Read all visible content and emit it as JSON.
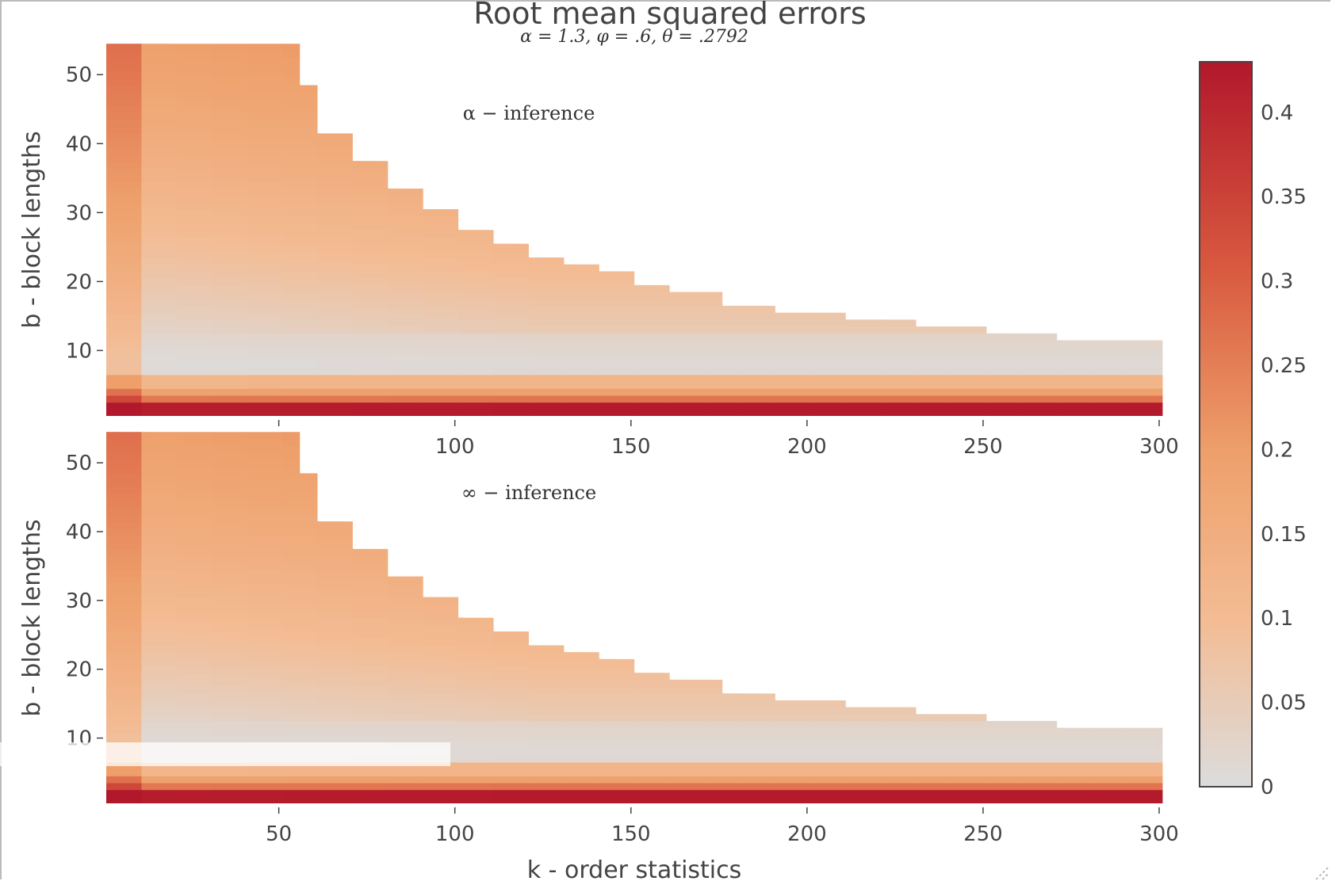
{
  "chart_data": {
    "type": "heatmap",
    "title": "Root mean squared errors",
    "subtitle": "α = 1.3, φ = .6, θ = .2792",
    "xlabel": "k - order statistics",
    "xlim": [
      1,
      300
    ],
    "xticks": [
      50,
      100,
      150,
      200,
      250,
      300
    ],
    "colorscale": {
      "range": [
        0,
        0.43
      ],
      "ticks": [
        "0",
        "0.05",
        "0.1",
        "0.15",
        "0.2",
        "0.25",
        "0.3",
        "0.35",
        "0.4"
      ],
      "tick_values": [
        0,
        0.05,
        0.1,
        0.15,
        0.2,
        0.25,
        0.3,
        0.35,
        0.4
      ],
      "colors": [
        "#dcdcdc",
        "#f3bc94",
        "#eea06b",
        "#d8583f",
        "#b2182b"
      ]
    },
    "boundary": {
      "description_k_max_per_b": [
        [
          55,
          54
        ],
        [
          60,
          48
        ],
        [
          70,
          41
        ],
        [
          80,
          37
        ],
        [
          90,
          33
        ],
        [
          100,
          30
        ],
        [
          110,
          27
        ],
        [
          120,
          25
        ],
        [
          130,
          23
        ],
        [
          140,
          22
        ],
        [
          150,
          21
        ],
        [
          160,
          19
        ],
        [
          175,
          18
        ],
        [
          190,
          16
        ],
        [
          210,
          15
        ],
        [
          230,
          14
        ],
        [
          250,
          13
        ],
        [
          270,
          12
        ],
        [
          300,
          11
        ]
      ]
    },
    "panels": [
      {
        "annotation": "α − inference",
        "ylabel": "b - block lengths",
        "ylim": [
          1,
          55
        ],
        "yticks": [
          10,
          20,
          30,
          40,
          50
        ],
        "xticks_shown": [
          "100",
          "150",
          "200",
          "250",
          "300"
        ]
      },
      {
        "annotation": "∞ − inference",
        "ylabel": "b - block lengths",
        "ylim": [
          1,
          55
        ],
        "yticks": [
          10,
          20,
          30,
          40,
          50
        ],
        "xticks_shown": [
          "50",
          "100",
          "150",
          "200",
          "250",
          "300"
        ]
      }
    ]
  }
}
